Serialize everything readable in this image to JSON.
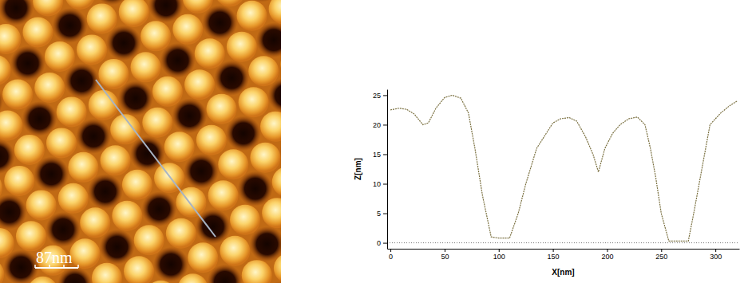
{
  "image": {
    "scale_bar_label": "87nm"
  },
  "chart_data": {
    "type": "line",
    "x": [
      0,
      8,
      15,
      22,
      30,
      35,
      42,
      50,
      57,
      65,
      72,
      78,
      85,
      93,
      100,
      110,
      118,
      125,
      135,
      142,
      150,
      157,
      165,
      172,
      180,
      187,
      192,
      198,
      205,
      212,
      220,
      228,
      235,
      240,
      245,
      250,
      257,
      265,
      275,
      280,
      287,
      295,
      305,
      313,
      320
    ],
    "values": [
      22.5,
      22.8,
      22.6,
      21.8,
      20.0,
      20.3,
      22.8,
      24.6,
      25.0,
      24.5,
      22.0,
      16.0,
      8.0,
      1.0,
      0.8,
      0.8,
      5.0,
      10.0,
      16.0,
      18.0,
      20.3,
      21.0,
      21.2,
      20.6,
      18.0,
      15.0,
      12.0,
      16.0,
      18.5,
      20.0,
      21.0,
      21.3,
      20.0,
      16.0,
      11.0,
      5.0,
      0.3,
      0.3,
      0.3,
      5.0,
      12.0,
      20.0,
      22.0,
      23.2,
      24.0
    ],
    "color": "#7a7040",
    "xlabel": "X[nm]",
    "ylabel": "Z[nm]",
    "xlim": [
      -3,
      322
    ],
    "ylim": [
      -1,
      26
    ],
    "xticks": [
      0,
      50,
      100,
      150,
      200,
      250,
      300
    ],
    "yticks": [
      0,
      5,
      10,
      15,
      20,
      25
    ],
    "grid": false
  }
}
